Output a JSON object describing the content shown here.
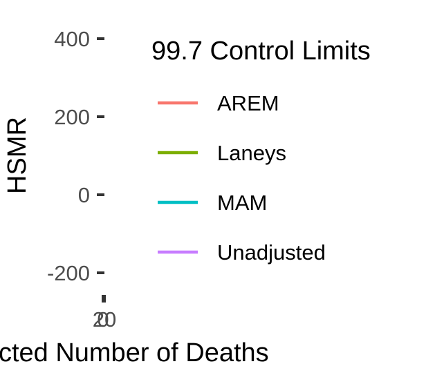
{
  "chart_data": {
    "type": "line",
    "title": "",
    "xlabel": "Expected Number of Deaths",
    "ylabel": "HSMR",
    "y_ticks": [
      400,
      200,
      0,
      -200
    ],
    "y_tick_labels": [
      "400",
      "200",
      "0",
      "-200"
    ],
    "x_ticks": [
      0,
      20
    ],
    "x_tick_labels": [
      "0",
      "20"
    ],
    "ylim": [
      -200,
      400
    ],
    "grid": false,
    "legend": {
      "title": "99.7 Control Limits",
      "position": "right"
    },
    "series": [
      {
        "name": "AREM",
        "color": "#F8766D",
        "values": []
      },
      {
        "name": "Laneys",
        "color": "#7CAE00",
        "values": []
      },
      {
        "name": "MAM",
        "color": "#00BFC4",
        "values": []
      },
      {
        "name": "Unadjusted",
        "color": "#C77CFF",
        "values": []
      }
    ]
  }
}
